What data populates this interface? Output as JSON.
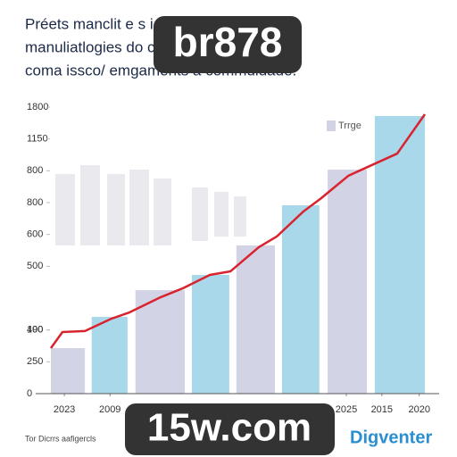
{
  "chart_data": {
    "type": "bar_line",
    "title_lines": [
      "Préets manclit e s ices engaprpade",
      "manuliatlogies do cor exenrione",
      "coma issco/ emgaments a commuidade."
    ],
    "legend": {
      "name": "Trrge",
      "color": "#d3d3e6",
      "corner": "upper right"
    },
    "xlim": [
      0,
      100
    ],
    "ylim": [
      0,
      1800
    ],
    "yticks": [
      0,
      {
        "value": 200,
        "label": "250"
      },
      {
        "value": 400,
        "label": "190"
      },
      400,
      {
        "value": 800,
        "label": "500"
      },
      {
        "value": 1000,
        "label": "600"
      },
      {
        "value": 1200,
        "label": "800"
      },
      {
        "value": 1400,
        "label": "800"
      },
      {
        "value": 1600,
        "label": "1150"
      },
      1800
    ],
    "xticks": [
      {
        "value": 3.6,
        "label": "2023"
      },
      {
        "value": 15.8,
        "label": "2009"
      },
      {
        "value": 79,
        "label": "2025"
      },
      {
        "value": 88.5,
        "label": "2015"
      },
      {
        "value": 98.5,
        "label": "2020"
      }
    ],
    "bars": {
      "x": [
        [
          0,
          9.1
        ],
        [
          10.9,
          20.5
        ],
        [
          22.6,
          35.8
        ],
        [
          37.7,
          47.7
        ],
        [
          49.6,
          59.9
        ],
        [
          61.8,
          71.8
        ],
        [
          74,
          84.5
        ],
        [
          86.6,
          100
        ]
      ],
      "values": [
        286,
        482,
        650,
        746,
        931,
        1183,
        1407,
        1744
      ],
      "colors": [
        "#d3d3e6",
        "#a9d8ea",
        "#d3d3e6",
        "#a9d8ea",
        "#d3d3e6",
        "#a9d8ea",
        "#d3d3e6",
        "#a9d8ea"
      ]
    },
    "line": {
      "color": "#d9232e",
      "x": [
        0,
        3.1,
        9.1,
        16.2,
        21,
        29.4,
        35.3,
        42.5,
        48,
        55.6,
        60.4,
        67.5,
        72.3,
        79.5,
        84.7,
        92.6,
        100
      ],
      "values": [
        286,
        387,
        393,
        471,
        510,
        606,
        662,
        746,
        768,
        920,
        987,
        1144,
        1228,
        1368,
        1424,
        1508,
        1755
      ]
    },
    "watermarks": [
      "br878",
      "15w.com"
    ],
    "footer_left": "Tor Dicrrs aafigercls",
    "footer_right": "Digventer"
  }
}
